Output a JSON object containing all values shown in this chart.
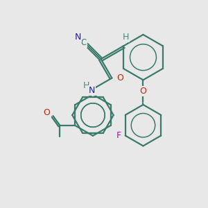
{
  "bg_color": "#e8e8e8",
  "bond_color": "#3a7a6a",
  "colors": {
    "C": "#3a7a6a",
    "N": "#1a1acc",
    "O": "#cc2200",
    "F": "#cc00bb",
    "H": "#4a8a7a"
  },
  "ring_lw": 1.6,
  "bond_lw": 1.6,
  "label_fs": 9
}
